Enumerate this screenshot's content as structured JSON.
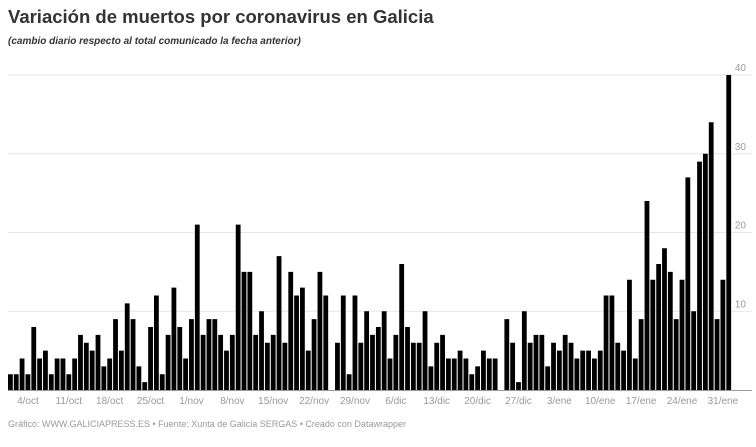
{
  "title": "Variación de muertos por coronavirus en Galicia",
  "subtitle": "(cambio diario respecto al total comunicado la fecha anterior)",
  "footer": "Gráfico: WWW.GALICIAPRESS.ES • Fuente: Xunta de Galicia SERGAS • Creado con Datawrapper",
  "chart_data": {
    "type": "bar",
    "title": "Variación de muertos por coronavirus en Galicia",
    "subtitle": "(cambio diario respecto al total comunicado la fecha anterior)",
    "xlabel": "",
    "ylabel": "",
    "ylim": [
      0,
      40
    ],
    "y_ticks": [
      10,
      20,
      30,
      40
    ],
    "y_axis_position": "right",
    "grid": true,
    "bar_color": "#000000",
    "x_ticks": [
      "4/oct",
      "11/oct",
      "18/oct",
      "25/oct",
      "1/nov",
      "8/nov",
      "15/nov",
      "22/nov",
      "29/nov",
      "6/dic",
      "13/dic",
      "20/dic",
      "27/dic",
      "3/ene",
      "10/ene",
      "17/ene",
      "24/ene",
      "31/ene"
    ],
    "categories": [
      "1/oct",
      "2/oct",
      "3/oct",
      "4/oct",
      "5/oct",
      "6/oct",
      "7/oct",
      "8/oct",
      "9/oct",
      "10/oct",
      "11/oct",
      "12/oct",
      "13/oct",
      "14/oct",
      "15/oct",
      "16/oct",
      "17/oct",
      "18/oct",
      "19/oct",
      "20/oct",
      "21/oct",
      "22/oct",
      "23/oct",
      "24/oct",
      "25/oct",
      "26/oct",
      "27/oct",
      "28/oct",
      "29/oct",
      "30/oct",
      "31/oct",
      "1/nov",
      "2/nov",
      "3/nov",
      "4/nov",
      "5/nov",
      "6/nov",
      "7/nov",
      "8/nov",
      "9/nov",
      "10/nov",
      "11/nov",
      "12/nov",
      "13/nov",
      "14/nov",
      "15/nov",
      "16/nov",
      "17/nov",
      "18/nov",
      "19/nov",
      "20/nov",
      "21/nov",
      "22/nov",
      "23/nov",
      "24/nov",
      "25/nov",
      "26/nov",
      "27/nov",
      "28/nov",
      "29/nov",
      "30/nov",
      "1/dic",
      "2/dic",
      "3/dic",
      "4/dic",
      "5/dic",
      "6/dic",
      "7/dic",
      "8/dic",
      "9/dic",
      "10/dic",
      "11/dic",
      "12/dic",
      "13/dic",
      "14/dic",
      "15/dic",
      "16/dic",
      "17/dic",
      "18/dic",
      "19/dic",
      "20/dic",
      "21/dic",
      "22/dic",
      "23/dic",
      "24/dic",
      "25/dic",
      "26/dic",
      "27/dic",
      "28/dic",
      "29/dic",
      "30/dic",
      "31/dic",
      "1/ene",
      "2/ene",
      "3/ene",
      "4/ene",
      "5/ene",
      "6/ene",
      "7/ene",
      "8/ene",
      "9/ene",
      "10/ene",
      "11/ene",
      "12/ene",
      "13/ene",
      "14/ene",
      "15/ene",
      "16/ene",
      "17/ene",
      "18/ene",
      "19/ene",
      "20/ene",
      "21/ene",
      "22/ene",
      "23/ene",
      "24/ene",
      "25/ene",
      "26/ene",
      "27/ene",
      "28/ene",
      "29/ene",
      "30/ene",
      "31/ene",
      "1/feb"
    ],
    "values": [
      2,
      2,
      4,
      2,
      8,
      4,
      5,
      2,
      4,
      4,
      2,
      4,
      7,
      6,
      5,
      7,
      3,
      4,
      9,
      5,
      11,
      9,
      3,
      1,
      8,
      12,
      2,
      7,
      13,
      8,
      4,
      9,
      21,
      7,
      9,
      9,
      7,
      5,
      7,
      21,
      15,
      15,
      7,
      10,
      6,
      7,
      17,
      6,
      15,
      12,
      13,
      5,
      9,
      15,
      12,
      0,
      6,
      12,
      2,
      12,
      6,
      10,
      7,
      8,
      10,
      4,
      7,
      16,
      8,
      6,
      6,
      10,
      3,
      6,
      7,
      4,
      4,
      5,
      4,
      2,
      3,
      5,
      4,
      4,
      0,
      9,
      6,
      1,
      10,
      6,
      7,
      7,
      3,
      6,
      5,
      7,
      6,
      4,
      5,
      5,
      4,
      5,
      12,
      12,
      6,
      5,
      14,
      4,
      9,
      24,
      14,
      16,
      18,
      15,
      9,
      14,
      27,
      10,
      29,
      30,
      34,
      9,
      14,
      40
    ]
  }
}
